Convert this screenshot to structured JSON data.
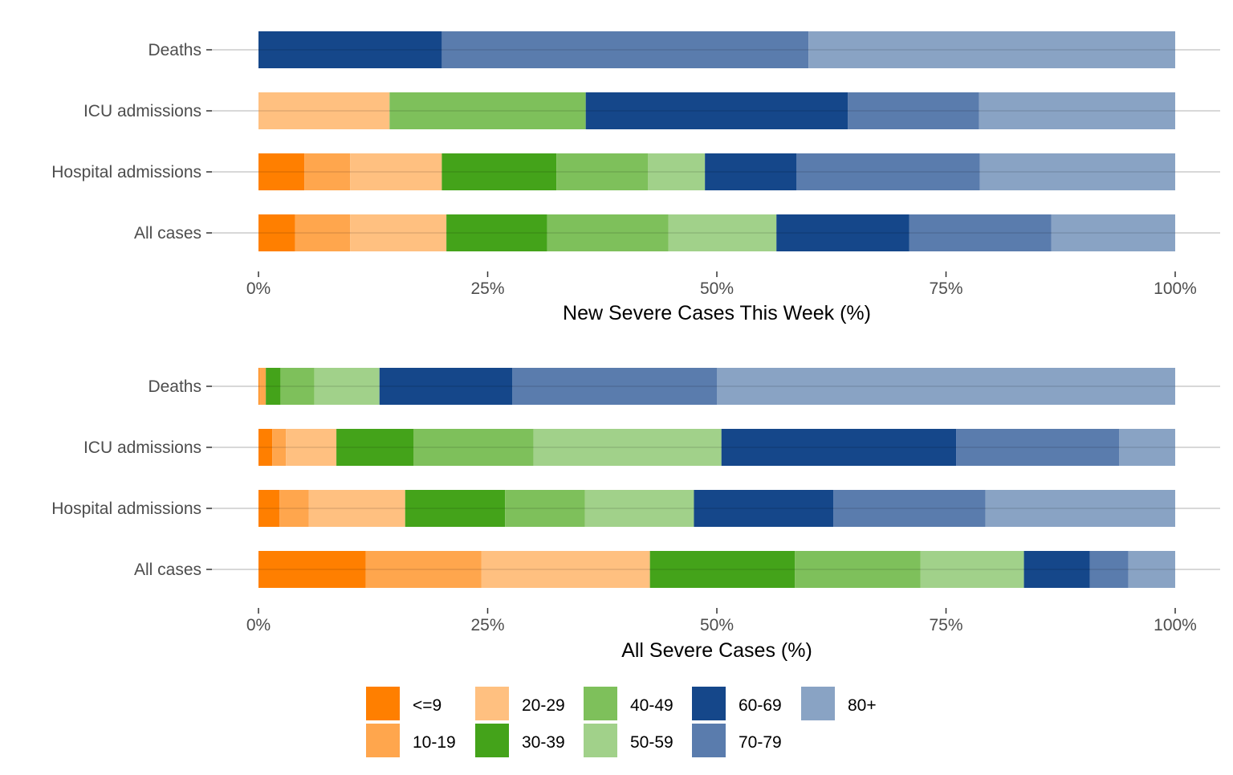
{
  "chart_data": [
    {
      "type": "bar",
      "orientation": "horizontal",
      "stacked": true,
      "categories": [
        "Deaths",
        "ICU admissions",
        "Hospital admissions",
        "All cases"
      ],
      "xlabel": "New Severe Cases This Week (%)",
      "xlim": [
        0,
        100
      ],
      "xticks": [
        "0%",
        "25%",
        "50%",
        "75%",
        "100%"
      ],
      "series": [
        {
          "name": "<=9",
          "values": [
            0,
            0,
            5,
            4
          ]
        },
        {
          "name": "10-19",
          "values": [
            0,
            0,
            5,
            6
          ]
        },
        {
          "name": "20-29",
          "values": [
            0,
            14.3,
            10,
            10.5
          ]
        },
        {
          "name": "30-39",
          "values": [
            0,
            0,
            12.5,
            11
          ]
        },
        {
          "name": "40-49",
          "values": [
            0,
            21.4,
            10,
            13.2
          ]
        },
        {
          "name": "50-59",
          "values": [
            0,
            0,
            6.2,
            11.8
          ]
        },
        {
          "name": "60-69",
          "values": [
            20,
            28.6,
            10,
            14.5
          ]
        },
        {
          "name": "70-79",
          "values": [
            40,
            14.3,
            20,
            15.5
          ]
        },
        {
          "name": "80+",
          "values": [
            40,
            21.4,
            21.3,
            13.5
          ]
        }
      ]
    },
    {
      "type": "bar",
      "orientation": "horizontal",
      "stacked": true,
      "categories": [
        "Deaths",
        "ICU admissions",
        "Hospital admissions",
        "All cases"
      ],
      "xlabel": "All Severe Cases (%)",
      "xlim": [
        0,
        100
      ],
      "xticks": [
        "0%",
        "25%",
        "50%",
        "75%",
        "100%"
      ],
      "series": [
        {
          "name": "<=9",
          "values": [
            0.1,
            1.5,
            2.3,
            11.7
          ]
        },
        {
          "name": "10-19",
          "values": [
            0.7,
            1.5,
            3.2,
            12.6
          ]
        },
        {
          "name": "20-29",
          "values": [
            0,
            5.5,
            10.5,
            18.4
          ]
        },
        {
          "name": "30-39",
          "values": [
            1.6,
            8.4,
            10.9,
            15.8
          ]
        },
        {
          "name": "40-49",
          "values": [
            3.7,
            13.1,
            8.7,
            13.7
          ]
        },
        {
          "name": "50-59",
          "values": [
            7.1,
            20.5,
            11.9,
            11.3
          ]
        },
        {
          "name": "60-69",
          "values": [
            14.5,
            25.6,
            15.2,
            7.2
          ]
        },
        {
          "name": "70-79",
          "values": [
            22.3,
            17.8,
            16.6,
            4.2
          ]
        },
        {
          "name": "80+",
          "values": [
            50.0,
            6.1,
            20.7,
            5.1
          ]
        }
      ]
    }
  ],
  "colors": {
    "<=9": "#ff7f00",
    "10-19": "#ffa64d",
    "20-29": "#ffc080",
    "30-39": "#44a31a",
    "40-49": "#7ec05b",
    "50-59": "#a1d18a",
    "60-69": "#15478a",
    "70-79": "#5a7cad",
    "80+": "#89a3c4"
  },
  "legend": {
    "position": "bottom",
    "entries": [
      "<=9",
      "10-19",
      "20-29",
      "30-39",
      "40-49",
      "50-59",
      "60-69",
      "70-79",
      "80+"
    ]
  },
  "grid": true
}
